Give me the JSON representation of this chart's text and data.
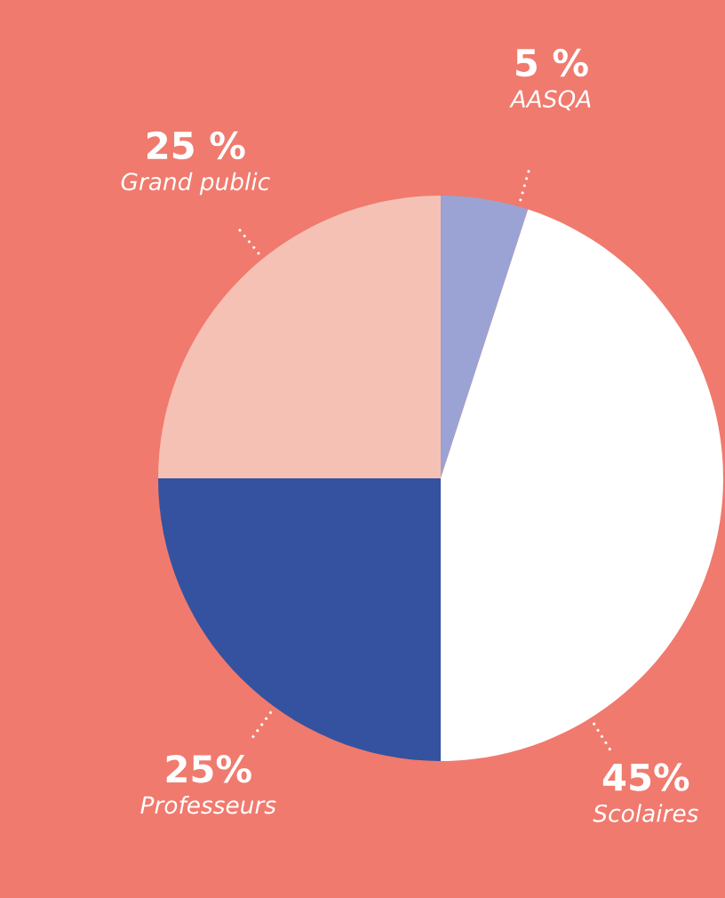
{
  "chart_data": {
    "type": "pie",
    "categories": [
      "AASQA",
      "Scolaires",
      "Professeurs",
      "Grand public"
    ],
    "values": [
      5,
      45,
      25,
      25
    ],
    "colors": [
      "#9ba3d4",
      "#ffffff",
      "#3452a0",
      "#f6c1b5"
    ],
    "value_labels": [
      "5 %",
      "45%",
      "25%",
      "25 %"
    ]
  }
}
